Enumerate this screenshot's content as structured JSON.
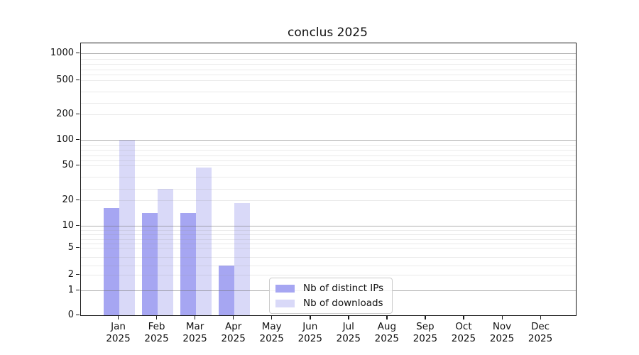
{
  "chart_data": {
    "type": "bar",
    "title": "conclus 2025",
    "categories": [
      "Jan",
      "Feb",
      "Mar",
      "Apr",
      "May",
      "Jun",
      "Jul",
      "Aug",
      "Sep",
      "Oct",
      "Nov",
      "Dec"
    ],
    "year_label": "2025",
    "series": [
      {
        "name": "Nb of distinct IPs",
        "color": "#a6a6f2",
        "values": [
          17,
          15,
          15,
          3,
          null,
          null,
          null,
          null,
          null,
          null,
          null,
          null
        ]
      },
      {
        "name": "Nb of downloads",
        "color": "#d9d9f8",
        "values": [
          100,
          30,
          48,
          19,
          null,
          null,
          null,
          null,
          null,
          null,
          null,
          null
        ]
      }
    ],
    "xlabel": "",
    "ylabel": "",
    "y_ticks": [
      0,
      1,
      2,
      5,
      10,
      20,
      50,
      100,
      200,
      500,
      1000
    ],
    "major_gridlines": [
      1,
      10,
      100,
      1000
    ],
    "minor_gridlines": [
      2,
      3,
      4,
      5,
      6,
      7,
      8,
      9,
      20,
      30,
      40,
      50,
      60,
      70,
      80,
      90,
      200,
      300,
      400,
      500,
      600,
      700,
      800,
      900
    ],
    "grid": "horizontal",
    "legend_position": "inside-lower-center",
    "yscale_anchors": [
      [
        0,
        383
      ],
      [
        1,
        348
      ],
      [
        2,
        326
      ],
      [
        5,
        288
      ],
      [
        10,
        257
      ],
      [
        20,
        221
      ],
      [
        50,
        172
      ],
      [
        100,
        136
      ],
      [
        200,
        100
      ],
      [
        500,
        52
      ],
      [
        1000,
        14
      ]
    ]
  }
}
